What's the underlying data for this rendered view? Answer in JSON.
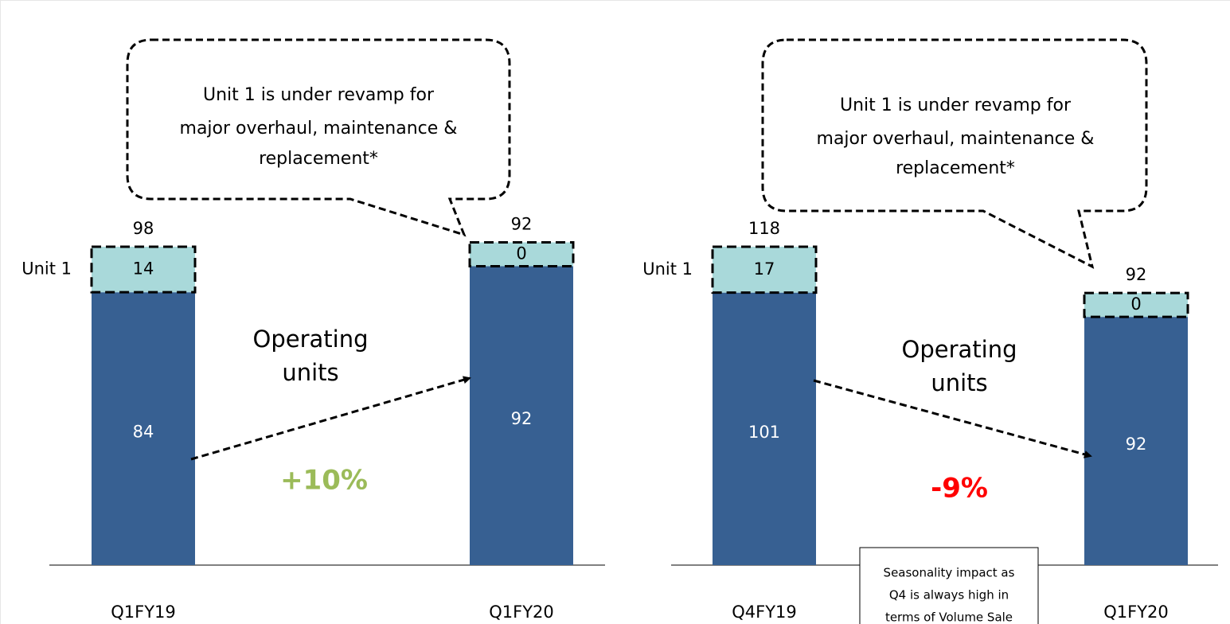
{
  "chart_data": [
    {
      "type": "bar",
      "stacked": true,
      "categories": [
        "Q1FY19",
        "Q1FY20"
      ],
      "series": [
        {
          "name": "Operating units",
          "color": "#376092",
          "values": [
            84,
            92
          ]
        },
        {
          "name": "Unit 1",
          "color": "#a9d9da",
          "values": [
            14,
            0
          ]
        }
      ],
      "totals": [
        98,
        92
      ],
      "callout": [
        "Unit 1 is under revamp for",
        "major overhaul, maintenance &",
        "replacement*"
      ],
      "change": "+10%",
      "change_color": "#9bbb59"
    },
    {
      "type": "bar",
      "stacked": true,
      "categories": [
        "Q4FY19",
        "Q1FY20"
      ],
      "series": [
        {
          "name": "Operating units",
          "color": "#376092",
          "values": [
            101,
            92
          ]
        },
        {
          "name": "Unit 1",
          "color": "#a9d9da",
          "values": [
            17,
            0
          ]
        }
      ],
      "totals": [
        118,
        92
      ],
      "callout": [
        "Unit 1 is under revamp for",
        "major overhaul, maintenance &",
        "replacement*"
      ],
      "change": "-9%",
      "change_color": "#ff0000",
      "note": [
        "Seasonality impact as",
        "Q4 is always high in",
        "terms of Volume Sale"
      ]
    }
  ]
}
